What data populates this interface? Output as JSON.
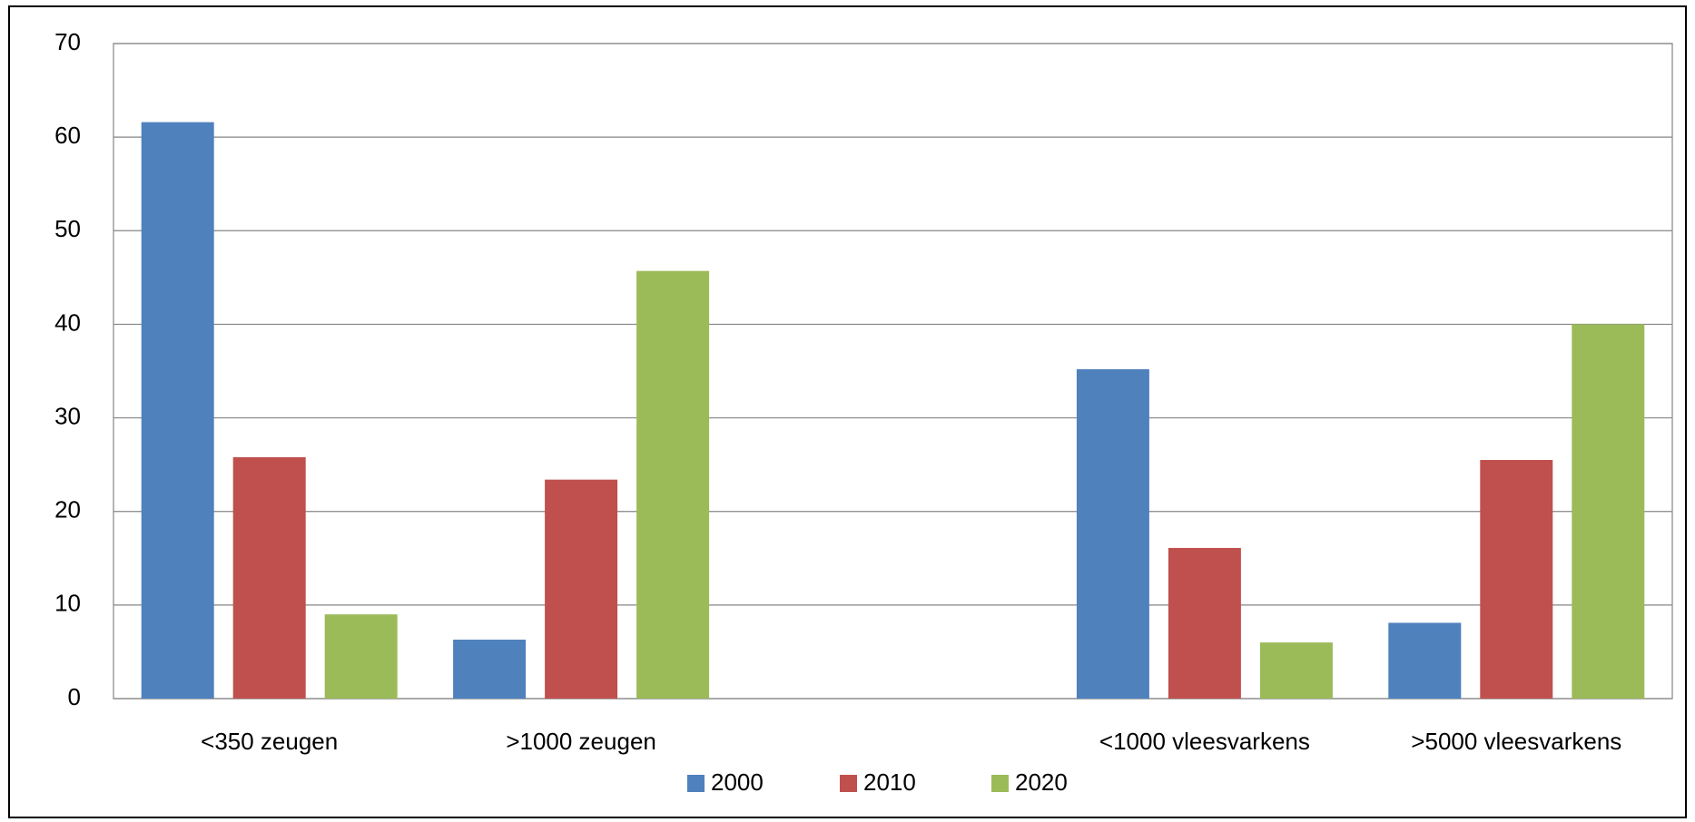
{
  "chart_data": {
    "type": "bar",
    "categories": [
      "<350 zeugen",
      ">1000 zeugen",
      null,
      "<1000 vleesvarkens",
      ">5000 vleesvarkens"
    ],
    "series": [
      {
        "name": "2000",
        "color": "#4f81bd",
        "values": [
          61.6,
          6.3,
          null,
          35.2,
          8.1
        ]
      },
      {
        "name": "2010",
        "color": "#c0504d",
        "values": [
          25.8,
          23.4,
          null,
          16.1,
          25.5
        ]
      },
      {
        "name": "2020",
        "color": "#9bbb59",
        "values": [
          9.0,
          45.7,
          null,
          6.0,
          40.0
        ]
      }
    ],
    "ylim": [
      0,
      70
    ],
    "yticks": [
      0,
      10,
      20,
      30,
      40,
      50,
      60,
      70
    ],
    "grid": true,
    "legend": "bottom"
  }
}
